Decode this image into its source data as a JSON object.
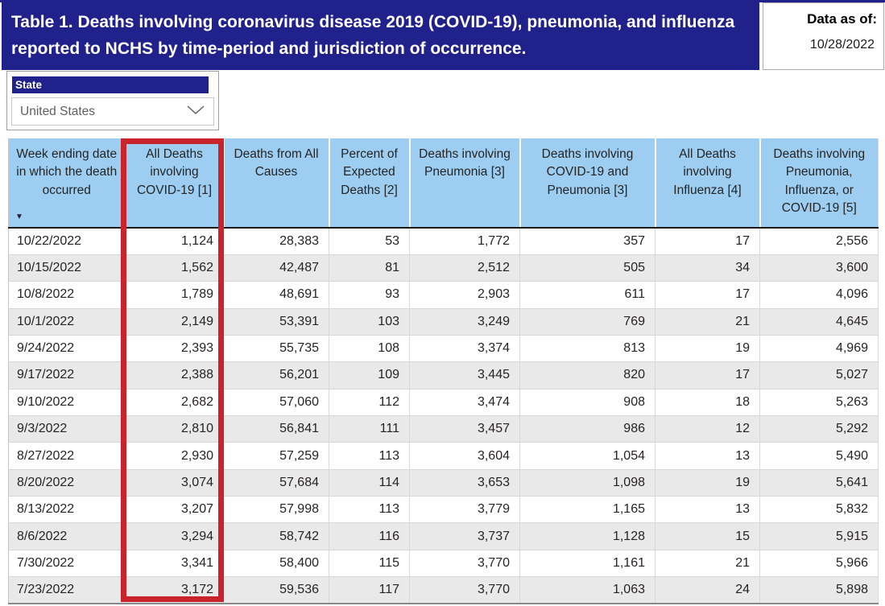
{
  "header": {
    "title": "Table 1. Deaths involving coronavirus disease 2019 (COVID-19), pneumonia, and influenza reported to NCHS by time-period and jurisdiction of occurrence.",
    "data_as_of_label": "Data as of:",
    "data_as_of_value": "10/28/2022"
  },
  "filter": {
    "label": "State",
    "value": "United States",
    "chevron_icon": "chevron-down"
  },
  "table": {
    "columns": [
      "Week ending date in which the death occurred",
      "All Deaths involving COVID-19 [1]",
      "Deaths from All Causes",
      "Percent of Expected Deaths [2]",
      "Deaths involving Pneumonia [3]",
      "Deaths involving COVID-19 and Pneumonia [3]",
      "All Deaths involving Influenza [4]",
      "Deaths involving Pneumonia, Influenza, or COVID-19 [5]"
    ],
    "sort_column_index": 0,
    "sort_icon": "▼",
    "highlighted_column_index": 1,
    "rows": [
      [
        "10/22/2022",
        "1,124",
        "28,383",
        "53",
        "1,772",
        "357",
        "17",
        "2,556"
      ],
      [
        "10/15/2022",
        "1,562",
        "42,487",
        "81",
        "2,512",
        "505",
        "34",
        "3,600"
      ],
      [
        "10/8/2022",
        "1,789",
        "48,691",
        "93",
        "2,903",
        "611",
        "17",
        "4,096"
      ],
      [
        "10/1/2022",
        "2,149",
        "53,391",
        "103",
        "3,249",
        "769",
        "21",
        "4,645"
      ],
      [
        "9/24/2022",
        "2,393",
        "55,735",
        "108",
        "3,374",
        "813",
        "19",
        "4,969"
      ],
      [
        "9/17/2022",
        "2,388",
        "56,201",
        "109",
        "3,445",
        "820",
        "17",
        "5,027"
      ],
      [
        "9/10/2022",
        "2,682",
        "57,060",
        "112",
        "3,474",
        "908",
        "18",
        "5,263"
      ],
      [
        "9/3/2022",
        "2,810",
        "56,841",
        "111",
        "3,457",
        "986",
        "12",
        "5,292"
      ],
      [
        "8/27/2022",
        "2,930",
        "57,259",
        "113",
        "3,604",
        "1,054",
        "13",
        "5,490"
      ],
      [
        "8/20/2022",
        "3,074",
        "57,684",
        "114",
        "3,653",
        "1,098",
        "19",
        "5,641"
      ],
      [
        "8/13/2022",
        "3,207",
        "57,998",
        "113",
        "3,779",
        "1,165",
        "13",
        "5,832"
      ],
      [
        "8/6/2022",
        "3,294",
        "58,742",
        "116",
        "3,737",
        "1,128",
        "15",
        "5,915"
      ],
      [
        "7/30/2022",
        "3,341",
        "58,400",
        "115",
        "3,770",
        "1,161",
        "21",
        "5,966"
      ],
      [
        "7/23/2022",
        "3,172",
        "59,536",
        "117",
        "3,770",
        "1,063",
        "24",
        "5,898"
      ]
    ]
  },
  "colors": {
    "navy": "#21218C",
    "header_blue": "#9DCEF2",
    "row_alt": "#E9E9E9",
    "highlight_red": "#C9242B",
    "text": "#252423",
    "muted_text": "#605E5C"
  }
}
